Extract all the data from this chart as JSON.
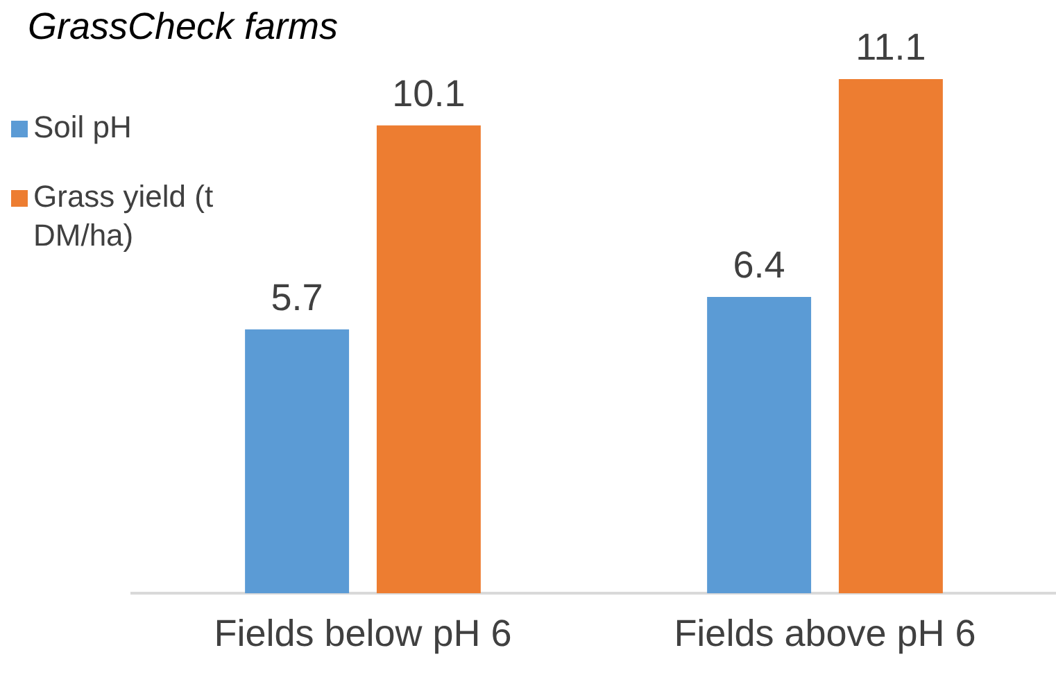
{
  "chart_data": {
    "type": "bar",
    "title": "GrassCheck farms",
    "categories": [
      "Fields below pH 6",
      "Fields above pH 6"
    ],
    "series": [
      {
        "name": "Soil pH",
        "color": "#5b9bd5",
        "values": [
          5.7,
          6.4
        ]
      },
      {
        "name": "Grass yield (t DM/ha)",
        "color": "#ed7d31",
        "values": [
          10.1,
          11.1
        ]
      }
    ],
    "tick_labels": "x",
    "data_labels": true,
    "legend": "top left",
    "grid": false
  }
}
